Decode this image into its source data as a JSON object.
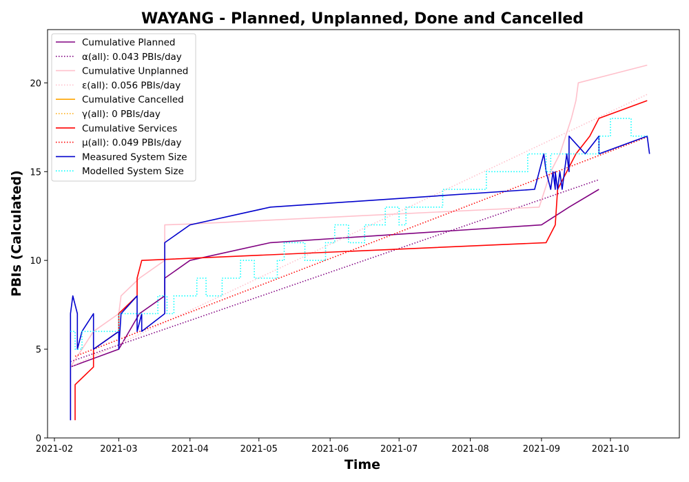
{
  "chart_data": {
    "type": "line",
    "title": "WAYANG - Planned, Unplanned, Done  and Cancelled",
    "xlabel": "Time",
    "ylabel": "PBIs (Calculated)",
    "xlim": [
      "2021-01-29",
      "2021-10-31"
    ],
    "ylim": [
      0,
      23
    ],
    "x_ticks": [
      "2021-02",
      "2021-03",
      "2021-04",
      "2021-05",
      "2021-06",
      "2021-07",
      "2021-08",
      "2021-09",
      "2021-10"
    ],
    "y_ticks": [
      0,
      5,
      10,
      15,
      20
    ],
    "grid": false,
    "legend_position": "top-left",
    "series": [
      {
        "name": "Cumulative Planned",
        "color": "#800080",
        "style": "solid",
        "points": [
          [
            "2021-02-08",
            1
          ],
          [
            "2021-02-08",
            4
          ],
          [
            "2021-03-01",
            5
          ],
          [
            "2021-03-10",
            7
          ],
          [
            "2021-03-21",
            8
          ],
          [
            "2021-03-21",
            9
          ],
          [
            "2021-04-01",
            10
          ],
          [
            "2021-05-06",
            11
          ],
          [
            "2021-09-01",
            12
          ],
          [
            "2021-09-13",
            13
          ],
          [
            "2021-09-26",
            14
          ]
        ]
      },
      {
        "name": "α(all): 0.043 PBIs/day",
        "color": "#800080",
        "style": "dotted",
        "points": [
          [
            "2021-02-08",
            4.3
          ],
          [
            "2021-09-26",
            14.55
          ]
        ]
      },
      {
        "name": "Cumulative Unplanned",
        "color": "#ffc0cb",
        "style": "solid",
        "points": [
          [
            "2021-02-08",
            1
          ],
          [
            "2021-02-08",
            4
          ],
          [
            "2021-02-18",
            6
          ],
          [
            "2021-03-01",
            7
          ],
          [
            "2021-03-02",
            8
          ],
          [
            "2021-03-10",
            9
          ],
          [
            "2021-03-21",
            10
          ],
          [
            "2021-03-21",
            12
          ],
          [
            "2021-04-01",
            12.05
          ],
          [
            "2021-08-31",
            13
          ],
          [
            "2021-09-05",
            15
          ],
          [
            "2021-09-09",
            16
          ],
          [
            "2021-09-14",
            18
          ],
          [
            "2021-09-16",
            19
          ],
          [
            "2021-09-17",
            20
          ],
          [
            "2021-10-17",
            21
          ]
        ]
      },
      {
        "name": "ε(all): 0.056 PBIs/day",
        "color": "#ffc0cb",
        "style": "dotted",
        "points": [
          [
            "2021-02-08",
            4
          ],
          [
            "2021-10-17",
            19.35
          ]
        ]
      },
      {
        "name": "Cumulative Cancelled",
        "color": "#ffa500",
        "style": "solid",
        "points": []
      },
      {
        "name": "γ(all): 0 PBIs/day",
        "color": "#ffa500",
        "style": "dotted",
        "points": []
      },
      {
        "name": "Cumulative Services",
        "color": "#ff0000",
        "style": "solid",
        "points": [
          [
            "2021-02-10",
            1
          ],
          [
            "2021-02-10",
            3
          ],
          [
            "2021-02-18",
            4
          ],
          [
            "2021-02-18",
            5
          ],
          [
            "2021-03-01",
            6
          ],
          [
            "2021-03-01",
            7
          ],
          [
            "2021-03-09",
            8
          ],
          [
            "2021-03-09",
            9
          ],
          [
            "2021-03-11",
            10
          ],
          [
            "2021-09-03",
            11
          ],
          [
            "2021-09-07",
            12
          ],
          [
            "2021-09-08",
            14
          ],
          [
            "2021-09-12",
            15
          ],
          [
            "2021-09-16",
            16
          ],
          [
            "2021-09-22",
            17
          ],
          [
            "2021-09-26",
            18
          ],
          [
            "2021-10-17",
            19
          ]
        ]
      },
      {
        "name": "μ(all): 0.049 PBIs/day",
        "color": "#ff0000",
        "style": "dotted",
        "points": [
          [
            "2021-02-10",
            4.6
          ],
          [
            "2021-10-17",
            16.95
          ]
        ]
      },
      {
        "name": "Measured System Size",
        "color": "#0000cc",
        "style": "solid",
        "points": [
          [
            "2021-02-08",
            1
          ],
          [
            "2021-02-08",
            7
          ],
          [
            "2021-02-09",
            8
          ],
          [
            "2021-02-11",
            7
          ],
          [
            "2021-02-11",
            5
          ],
          [
            "2021-02-13",
            6
          ],
          [
            "2021-02-18",
            7
          ],
          [
            "2021-02-18",
            5
          ],
          [
            "2021-03-01",
            6
          ],
          [
            "2021-03-01",
            5
          ],
          [
            "2021-03-02",
            7
          ],
          [
            "2021-03-09",
            8
          ],
          [
            "2021-03-09",
            6
          ],
          [
            "2021-03-11",
            7
          ],
          [
            "2021-03-11",
            6
          ],
          [
            "2021-03-21",
            7
          ],
          [
            "2021-03-21",
            11
          ],
          [
            "2021-04-01",
            12
          ],
          [
            "2021-05-06",
            13
          ],
          [
            "2021-08-29",
            14
          ],
          [
            "2021-09-02",
            16
          ],
          [
            "2021-09-03",
            15
          ],
          [
            "2021-09-05",
            14
          ],
          [
            "2021-09-06",
            15
          ],
          [
            "2021-09-07",
            14
          ],
          [
            "2021-09-07",
            15
          ],
          [
            "2021-09-08",
            14
          ],
          [
            "2021-09-09",
            15
          ],
          [
            "2021-09-10",
            14
          ],
          [
            "2021-09-12",
            16
          ],
          [
            "2021-09-13",
            15
          ],
          [
            "2021-09-13",
            17
          ],
          [
            "2021-09-20",
            16
          ],
          [
            "2021-09-26",
            17
          ],
          [
            "2021-09-26",
            16
          ],
          [
            "2021-10-17",
            17
          ],
          [
            "2021-10-18",
            16
          ]
        ]
      },
      {
        "name": "Modelled System Size",
        "color": "#00ffff",
        "style": "dotted",
        "points": [
          [
            "2021-02-08",
            6
          ],
          [
            "2021-02-10",
            6
          ],
          [
            "2021-02-10",
            5
          ],
          [
            "2021-02-13",
            5
          ],
          [
            "2021-02-13",
            6
          ],
          [
            "2021-03-01",
            6
          ],
          [
            "2021-03-01",
            7
          ],
          [
            "2021-03-18",
            7
          ],
          [
            "2021-03-18",
            8
          ],
          [
            "2021-03-22",
            8
          ],
          [
            "2021-03-22",
            7
          ],
          [
            "2021-03-25",
            7
          ],
          [
            "2021-03-25",
            8
          ],
          [
            "2021-04-04",
            8
          ],
          [
            "2021-04-04",
            9
          ],
          [
            "2021-04-08",
            9
          ],
          [
            "2021-04-08",
            8
          ],
          [
            "2021-04-15",
            8
          ],
          [
            "2021-04-15",
            9
          ],
          [
            "2021-04-23",
            9
          ],
          [
            "2021-04-23",
            10
          ],
          [
            "2021-04-29",
            10
          ],
          [
            "2021-04-29",
            9
          ],
          [
            "2021-05-09",
            9
          ],
          [
            "2021-05-09",
            10
          ],
          [
            "2021-05-12",
            10
          ],
          [
            "2021-05-12",
            11
          ],
          [
            "2021-05-21",
            11
          ],
          [
            "2021-05-21",
            10
          ],
          [
            "2021-05-30",
            10
          ],
          [
            "2021-05-30",
            11
          ],
          [
            "2021-06-03",
            11
          ],
          [
            "2021-06-03",
            12
          ],
          [
            "2021-06-09",
            12
          ],
          [
            "2021-06-09",
            11
          ],
          [
            "2021-06-16",
            11
          ],
          [
            "2021-06-16",
            12
          ],
          [
            "2021-06-25",
            12
          ],
          [
            "2021-06-25",
            13
          ],
          [
            "2021-07-01",
            13
          ],
          [
            "2021-07-01",
            12
          ],
          [
            "2021-07-04",
            12
          ],
          [
            "2021-07-04",
            13
          ],
          [
            "2021-07-20",
            13
          ],
          [
            "2021-07-20",
            14
          ],
          [
            "2021-08-08",
            14
          ],
          [
            "2021-08-08",
            15
          ],
          [
            "2021-08-26",
            15
          ],
          [
            "2021-08-26",
            16
          ],
          [
            "2021-09-03",
            16
          ],
          [
            "2021-09-03",
            15
          ],
          [
            "2021-09-05",
            15
          ],
          [
            "2021-09-05",
            16
          ],
          [
            "2021-09-26",
            16
          ],
          [
            "2021-09-26",
            17
          ],
          [
            "2021-10-01",
            17
          ],
          [
            "2021-10-01",
            18
          ],
          [
            "2021-10-10",
            18
          ],
          [
            "2021-10-10",
            17
          ],
          [
            "2021-10-17",
            17
          ]
        ]
      }
    ]
  }
}
